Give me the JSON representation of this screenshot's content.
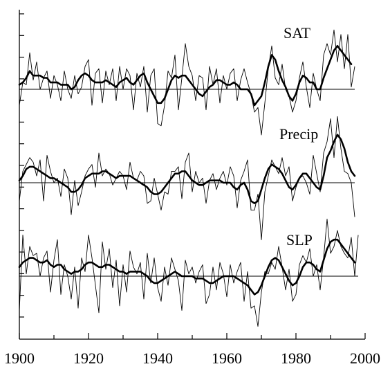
{
  "colors": {
    "axis": "#000000",
    "raw_series": "#000000",
    "smoothed_series": "#000000",
    "baseline": "#000000"
  },
  "chart_data": {
    "type": "line",
    "title": "",
    "xlabel": "",
    "ylabel": "",
    "xlim": [
      1900,
      2000
    ],
    "x_ticks": [
      1900,
      1920,
      1940,
      1960,
      1980,
      2000
    ],
    "x_tick_labels": [
      "1900",
      "1920",
      "1940",
      "1960",
      "1980",
      "2000"
    ],
    "grid": false,
    "legend": "none",
    "panels": [
      {
        "label": "SAT",
        "ylim": [
          -3,
          3
        ],
        "baseline": 0,
        "raw_x_start": 1900,
        "raw": [
          -0.7,
          0.3,
          0.2,
          1.6,
          0.4,
          1.2,
          0.0,
          0.5,
          0.8,
          -0.4,
          0.6,
          0.2,
          -0.5,
          0.8,
          0.0,
          -0.4,
          0.6,
          -0.2,
          0.1,
          1.0,
          1.3,
          -0.7,
          0.7,
          0.9,
          -0.6,
          0.8,
          0.2,
          0.9,
          -0.5,
          1.0,
          0.0,
          0.9,
          0.6,
          -0.9,
          0.7,
          0.1,
          1.0,
          -1.0,
          0.6,
          0.9,
          -1.5,
          -1.6,
          -0.7,
          0.8,
          0.5,
          1.5,
          -0.9,
          0.5,
          2.0,
          1.0,
          0.6,
          -0.5,
          0.6,
          0.5,
          -0.9,
          1.0,
          0.2,
          0.9,
          -0.6,
          0.6,
          0.0,
          0.7,
          0.9,
          -0.5,
          0.4,
          0.9,
          0.3,
          -0.2,
          -1.0,
          -0.8,
          -2.0,
          -0.6,
          0.9,
          1.9,
          0.5,
          0.2,
          1.1,
          0.0,
          -0.3,
          -1.0,
          -0.5,
          0.5,
          1.2,
          0.1,
          -0.8,
          0.7,
          0.0,
          -0.5,
          1.5,
          2.0,
          1.5,
          2.6,
          1.2,
          2.4,
          0.9,
          2.4,
          0.1,
          1.0
        ],
        "smoothed_x_start": 1900,
        "smoothed": [
          0.2,
          0.3,
          0.5,
          0.8,
          0.6,
          0.6,
          0.6,
          0.5,
          0.5,
          0.3,
          0.3,
          0.3,
          0.2,
          0.2,
          0.2,
          0.0,
          0.1,
          0.4,
          0.6,
          0.7,
          0.6,
          0.4,
          0.3,
          0.3,
          0.3,
          0.4,
          0.3,
          0.2,
          0.1,
          0.3,
          0.4,
          0.5,
          0.3,
          0.2,
          0.4,
          0.6,
          0.7,
          0.3,
          0.0,
          -0.3,
          -0.6,
          -0.6,
          -0.4,
          0.0,
          0.4,
          0.6,
          0.5,
          0.6,
          0.6,
          0.4,
          0.2,
          0.0,
          -0.2,
          -0.3,
          -0.1,
          0.1,
          0.2,
          0.4,
          0.4,
          0.3,
          0.2,
          0.2,
          0.3,
          0.2,
          0.0,
          0.0,
          0.0,
          -0.2,
          -0.7,
          -0.5,
          -0.3,
          0.3,
          1.0,
          1.5,
          1.3,
          0.8,
          0.4,
          0.1,
          -0.3,
          -0.5,
          -0.2,
          0.3,
          0.6,
          0.5,
          0.3,
          0.3,
          0.0,
          0.0,
          0.5,
          0.9,
          1.3,
          1.7,
          1.9,
          1.7,
          1.5,
          1.3,
          1.1
        ]
      },
      {
        "label": "Precip",
        "ylim": [
          -3,
          3
        ],
        "baseline": 0,
        "raw_x_start": 1900,
        "raw": [
          -0.8,
          0.5,
          0.8,
          1.1,
          0.9,
          0.3,
          1.0,
          -0.8,
          1.2,
          0.5,
          0.0,
          0.2,
          -0.6,
          0.6,
          0.2,
          -1.4,
          0.1,
          -1.0,
          -0.4,
          0.3,
          0.6,
          0.8,
          -0.2,
          1.3,
          0.3,
          0.6,
          0.4,
          -0.1,
          0.2,
          0.5,
          0.3,
          -0.3,
          0.9,
          0.2,
          0.1,
          0.5,
          0.3,
          -0.9,
          -0.8,
          0.2,
          -0.5,
          -1.2,
          -0.4,
          -0.5,
          0.5,
          0.5,
          0.7,
          -0.7,
          0.9,
          1.3,
          -0.4,
          0.5,
          0.0,
          0.2,
          -0.9,
          0.1,
          0.4,
          -0.3,
          0.2,
          0.5,
          -0.1,
          0.7,
          0.3,
          -1.1,
          0.1,
          0.5,
          1.0,
          -1.2,
          -1.2,
          -0.5,
          -2.5,
          -0.4,
          0.3,
          1.0,
          0.7,
          0.4,
          1.1,
          0.3,
          0.7,
          -0.8,
          -0.2,
          0.2,
          0.3,
          0.0,
          -0.5,
          1.2,
          0.4,
          -0.4,
          1.3,
          1.8,
          2.8,
          1.1,
          2.9,
          1.5,
          0.5,
          0.4,
          0.0,
          -1.5
        ],
        "smoothed_x_start": 1900,
        "smoothed": [
          0.1,
          0.3,
          0.6,
          0.7,
          0.7,
          0.6,
          0.5,
          0.4,
          0.3,
          0.2,
          0.2,
          0.1,
          0.0,
          -0.1,
          -0.2,
          -0.4,
          -0.4,
          -0.3,
          -0.1,
          0.2,
          0.3,
          0.4,
          0.4,
          0.4,
          0.5,
          0.5,
          0.4,
          0.3,
          0.2,
          0.3,
          0.3,
          0.3,
          0.3,
          0.2,
          0.1,
          0.0,
          -0.1,
          -0.2,
          -0.4,
          -0.5,
          -0.5,
          -0.4,
          -0.2,
          0.0,
          0.2,
          0.4,
          0.4,
          0.5,
          0.5,
          0.3,
          0.1,
          0.0,
          -0.1,
          -0.1,
          0.0,
          0.1,
          0.1,
          0.1,
          0.1,
          0.0,
          0.0,
          0.0,
          -0.2,
          -0.3,
          -0.1,
          0.0,
          -0.3,
          -0.8,
          -0.9,
          -0.8,
          -0.3,
          0.2,
          0.6,
          0.8,
          0.7,
          0.6,
          0.4,
          0.1,
          -0.2,
          -0.3,
          -0.1,
          0.2,
          0.4,
          0.4,
          0.2,
          0.0,
          -0.2,
          -0.3,
          0.3,
          1.1,
          1.4,
          1.8,
          2.1,
          1.9,
          1.5,
          0.9,
          0.5,
          0.3
        ]
      },
      {
        "label": "SLP",
        "ylim": [
          -3,
          3
        ],
        "baseline": 0,
        "raw_x_start": 1900,
        "raw": [
          -1.5,
          1.8,
          0.1,
          1.3,
          0.9,
          1.0,
          0.0,
          0.8,
          1.1,
          -0.7,
          0.7,
          1.6,
          -0.8,
          0.5,
          0.0,
          -1.0,
          0.4,
          -1.4,
          0.8,
          0.2,
          1.8,
          0.8,
          -0.4,
          -1.6,
          1.5,
          0.3,
          1.2,
          -0.5,
          0.7,
          -1.3,
          0.5,
          -0.7,
          1.1,
          0.4,
          0.1,
          0.6,
          -1.0,
          1.0,
          -0.3,
          0.8,
          -0.5,
          -1.1,
          0.4,
          -0.4,
          0.8,
          0.3,
          -0.2,
          -1.5,
          0.7,
          0.1,
          0.4,
          -0.3,
          0.2,
          0.5,
          -1.2,
          -0.8,
          0.4,
          -0.6,
          0.6,
          0.1,
          -0.9,
          0.5,
          -0.3,
          0.2,
          0.6,
          -1.1,
          0.2,
          -1.4,
          -1.3,
          -2.2,
          -0.7,
          0.2,
          0.1,
          0.6,
          0.3,
          1.3,
          0.4,
          -0.6,
          0.3,
          -1.1,
          -0.8,
          0.5,
          0.9,
          0.6,
          1.2,
          0.0,
          0.5,
          -0.6,
          0.8,
          2.5,
          1.0,
          1.3,
          2.0,
          1.3,
          1.0,
          0.8,
          1.7,
          0.0,
          1.8
        ],
        "smoothed_x_start": 1900,
        "smoothed": [
          0.4,
          0.6,
          0.7,
          0.8,
          0.8,
          0.7,
          0.6,
          0.6,
          0.7,
          0.5,
          0.4,
          0.5,
          0.5,
          0.3,
          0.2,
          0.1,
          0.2,
          0.2,
          0.3,
          0.5,
          0.6,
          0.6,
          0.5,
          0.4,
          0.4,
          0.5,
          0.5,
          0.4,
          0.3,
          0.2,
          0.2,
          0.1,
          0.2,
          0.2,
          0.2,
          0.2,
          0.1,
          0.0,
          -0.2,
          -0.3,
          -0.3,
          -0.2,
          -0.1,
          0.0,
          0.1,
          0.2,
          0.1,
          0.0,
          0.0,
          0.0,
          0.0,
          -0.1,
          -0.1,
          -0.1,
          -0.2,
          -0.3,
          -0.3,
          -0.2,
          -0.1,
          0.0,
          0.0,
          0.0,
          0.0,
          -0.1,
          -0.2,
          -0.3,
          -0.4,
          -0.6,
          -0.8,
          -0.7,
          -0.4,
          0.0,
          0.4,
          0.7,
          0.8,
          0.7,
          0.4,
          0.1,
          -0.2,
          -0.4,
          -0.3,
          0.0,
          0.4,
          0.6,
          0.6,
          0.5,
          0.3,
          0.2,
          0.7,
          1.2,
          1.5,
          1.6,
          1.6,
          1.4,
          1.2,
          1.0,
          0.8,
          0.6
        ]
      }
    ]
  }
}
